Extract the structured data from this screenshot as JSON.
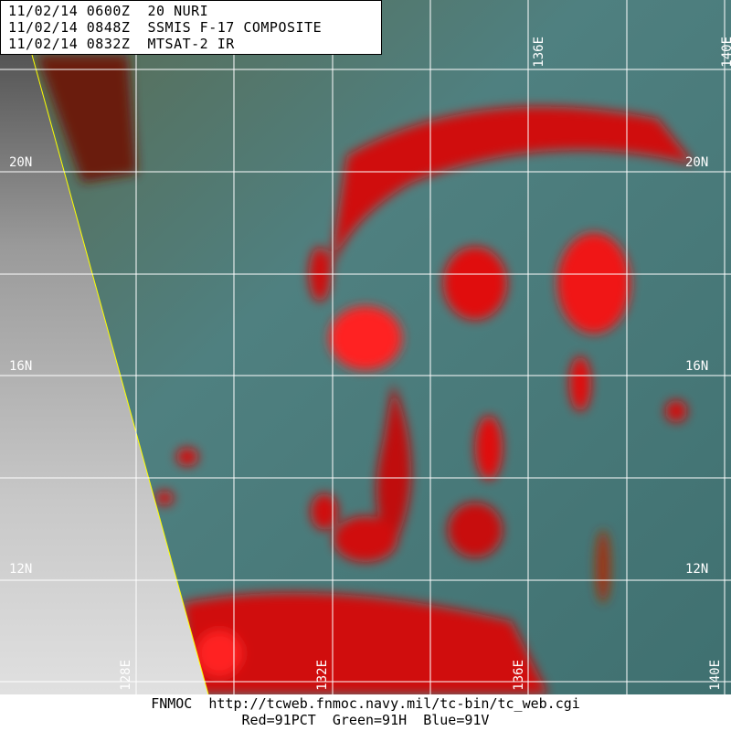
{
  "header": {
    "lines": [
      "11/02/14 0600Z  20 NURI",
      "11/02/14 0848Z  SSMIS F-17 COMPOSITE",
      "11/02/14 0832Z  MTSAT-2 IR"
    ]
  },
  "footer": {
    "line1": "FNMOC  http://tcweb.fnmoc.navy.mil/tc-bin/tc_web.cgi",
    "line2": "Red=91PCT  Green=91H  Blue=91V"
  },
  "grid": {
    "lat_labels": [
      "20N",
      "16N",
      "12N"
    ],
    "lon_labels_top": [
      "136E",
      "140E"
    ],
    "lon_labels_bottom": [
      "128E",
      "132E",
      "136E",
      "140E"
    ]
  },
  "colors": {
    "strong_convection": "#ff0000",
    "background": "#4f7f7a",
    "ir_region": "#bdbdbd",
    "swath_edge": "#ffff00",
    "grid": "#ffffff"
  }
}
